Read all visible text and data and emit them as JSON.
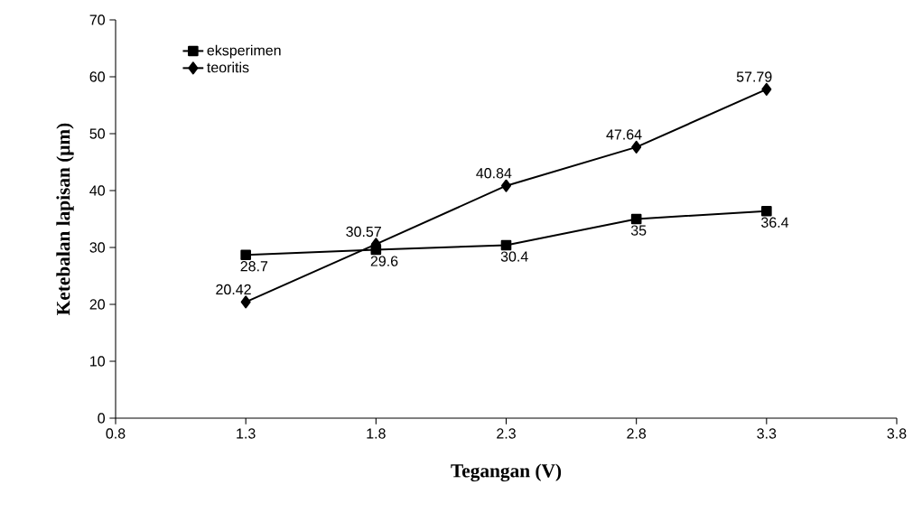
{
  "chart_data": {
    "type": "line",
    "xlabel": "Tegangan (V)",
    "ylabel": "Ketebalan lapisan (μm)",
    "x": [
      1.3,
      1.8,
      2.3,
      2.8,
      3.3
    ],
    "series": [
      {
        "name": "eksperimen",
        "color": "#000000",
        "marker": "square",
        "values": [
          28.7,
          29.6,
          30.4,
          35,
          36.4
        ]
      },
      {
        "name": "teoritis",
        "color": "#000000",
        "marker": "diamond",
        "values": [
          20.42,
          30.57,
          40.84,
          47.64,
          57.79
        ]
      }
    ],
    "xlim": [
      0.8,
      3.8
    ],
    "xticks": [
      0.8,
      1.3,
      1.8,
      2.3,
      2.8,
      3.3,
      3.8
    ],
    "ylim": [
      0,
      70
    ],
    "yticks": [
      0,
      10,
      20,
      30,
      40,
      50,
      60,
      70
    ],
    "data_labels": true,
    "grid": false,
    "legend": "top left",
    "line_style": "solid"
  }
}
